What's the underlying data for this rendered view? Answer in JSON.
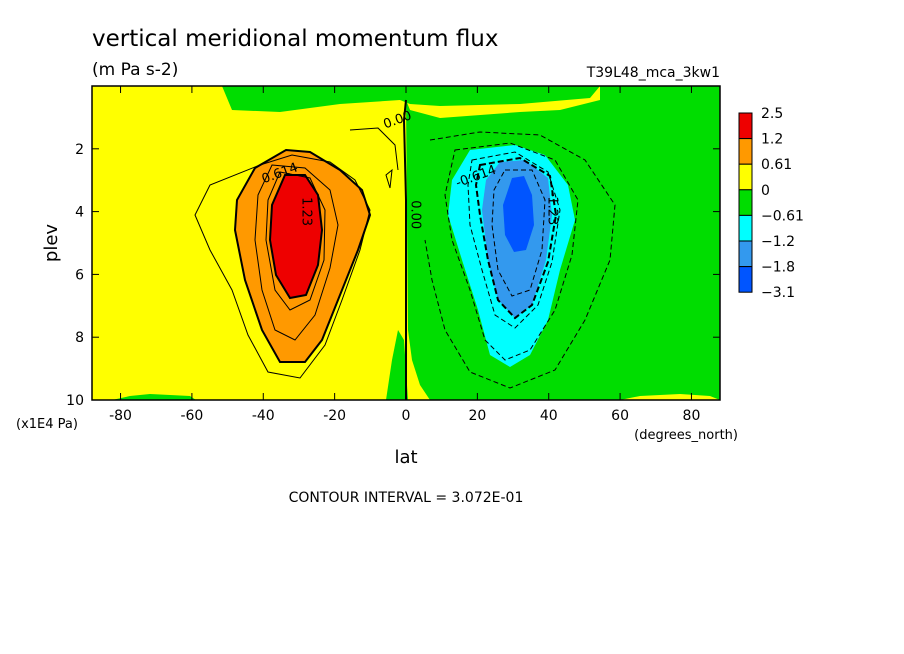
{
  "chart_data": {
    "type": "contour",
    "title": "vertical meridional momentum flux",
    "units": "(m Pa s-2)",
    "run_label": "T39L48_mca_3kw1",
    "xlabel": "lat",
    "x_units": "(degrees_north)",
    "ylabel": "plev",
    "y_units": "(x1E4 Pa)",
    "xlim": [
      -88,
      88
    ],
    "ylim": [
      10,
      0
    ],
    "x_ticks": [
      -80,
      -60,
      -40,
      -20,
      0,
      20,
      40,
      60,
      80
    ],
    "y_ticks": [
      2,
      4,
      6,
      8,
      10
    ],
    "contour_interval_text": "CONTOUR INTERVAL = 3.072E-01",
    "colorbar": {
      "labels": [
        "2.5",
        "1.2",
        "0.61",
        "0",
        "-0.61",
        "-1.2",
        "-1.8",
        "-3.1"
      ],
      "colors": [
        "#ee0000",
        "#ff9900",
        "#ffff00",
        "#00dd00",
        "#00ffff",
        "#3399ee",
        "#0055ff"
      ]
    },
    "contour_labels": [
      {
        "text": "0.00",
        "x": -2,
        "y": 1.2
      },
      {
        "text": "0.614",
        "x": -35,
        "y": 2.9
      },
      {
        "text": "1.23",
        "x": -29,
        "y": 4.0
      },
      {
        "text": "0.00",
        "x": 1.5,
        "y": 4.1
      },
      {
        "text": "-0.614",
        "x": 20,
        "y": 3.0
      },
      {
        "text": "-1.23",
        "x": 40,
        "y": 3.9
      }
    ],
    "features": [
      {
        "sign": "positive",
        "center_lat": -31,
        "center_plev": 4.5,
        "max_level": "2.5"
      },
      {
        "sign": "negative",
        "center_lat": 31,
        "center_plev": 4.2,
        "min_level": "-3.1"
      }
    ]
  }
}
